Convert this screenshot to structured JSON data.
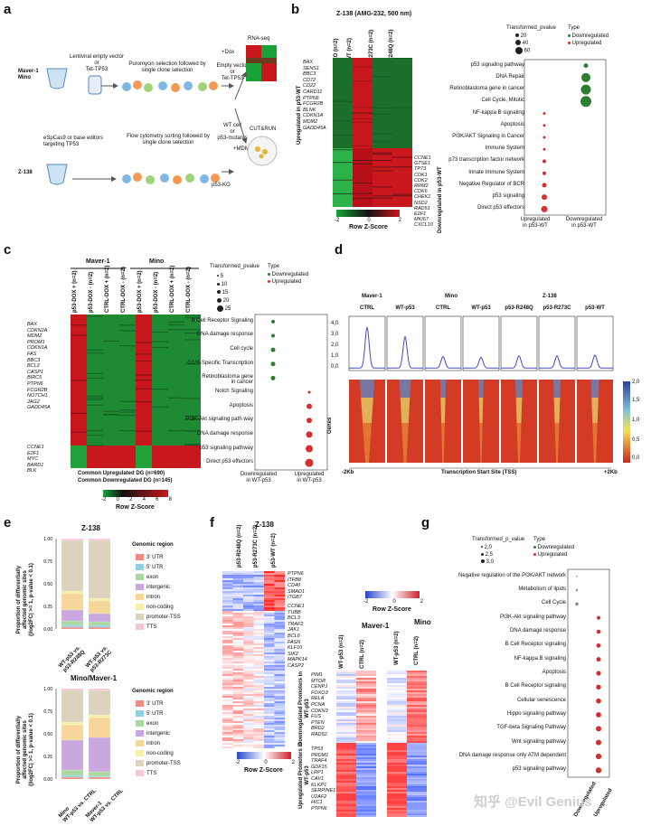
{
  "panels": [
    "a",
    "b",
    "c",
    "d",
    "e",
    "f",
    "g"
  ],
  "colors": {
    "up": "#d32f2f",
    "down": "#2e7d32",
    "heat_green": "#18a33a",
    "heat_red": "#c8181e",
    "blue_heat": "#3b5bd6",
    "tss_red": "#d33b24",
    "tss_yellow": "#f2e25b",
    "curve": "#4a4ab8"
  },
  "a": {
    "rows": [
      {
        "cell": "Maver-1\nMino",
        "source": "Lentiviral empty vector\nor\nTet-TP53",
        "step1": "Puromycin selection followed by\nsingle clone selection",
        "step2": "Empty vector\nor\nTet-TP53",
        "treat": "+Dox"
      },
      {
        "cell": "Z-138",
        "source": "eSpCas9 or base editors\ntargeting TP53",
        "step1": "Flow cytometry sorting followed by\nsingle clone selection",
        "step2": "WT cell\nor\np53-mutants",
        "treat": "+MDM2i"
      }
    ],
    "p53ko": "p53-KO",
    "assays": [
      "RNA-seq",
      "CUT&RUN"
    ]
  },
  "b": {
    "title": "Z-138 (AMG-232, 500 nm)",
    "columns": [
      "p53-KO (n=2)",
      "p53-WT (n=2)",
      "p53-R273C (n=2)",
      "p53-R248Q (n=2)"
    ],
    "side_up": "Upregulated in p53-WT",
    "side_down": "Downregulated in p53-WT",
    "genes_up": [
      "BAX",
      "SENS1",
      "BBC3",
      "CD72",
      "CD22",
      "CARD11",
      "PTPN6",
      "FCGR2B",
      "BLNK",
      "CDKN1A",
      "MDM2",
      "GADD45A"
    ],
    "genes_down": [
      "CCNE1",
      "GTSE1",
      "TP73",
      "CDK1",
      "CDK2",
      "RRM2",
      "CDK6",
      "CHEK1",
      "NSD2",
      "RAD51",
      "E2F1",
      "MKI67",
      "CXCL10"
    ],
    "scale_title": "Row Z-Score",
    "scale_ticks": [
      "-2",
      "0",
      "2"
    ],
    "size_legend_title": "Transformed_pvalue",
    "size_legend": [
      "20",
      "40",
      "60"
    ],
    "type_title": "Type",
    "type_labels": [
      "Downregulated",
      "Upregulated"
    ],
    "pathways": [
      "p53 signaling pathway",
      "DNA Repair",
      "Retinoblastoma gene in cancer",
      "Cell Cycle, Mitotic",
      "NF-kappa B signaling",
      "Apoptosis",
      "PI3K/AKT Signaling in Cancer",
      "Immune System",
      "p73 transcription factor network",
      "Innate Immune System",
      "Negative Regulator of BCR",
      "p53 signaling",
      "Direct p53 effectors"
    ],
    "x_labels": [
      "Upregulated\nin p53-WT",
      "Downregulated\nin p53-WT"
    ]
  },
  "c": {
    "groups": [
      "Maver-1",
      "Mino"
    ],
    "columns": [
      "p53-DOX + (n=2)",
      "p53-DOX - (n=2)",
      "CTRL-DOX + (n=2)",
      "CTRL-DOX - (n=2)",
      "p53-DOX + (n=2)",
      "p53-DOX - (n=2)",
      "CTRL-DOX + (n=2)",
      "CTRL-DOX - (n=2)"
    ],
    "genes_up": [
      "BAX",
      "CDKN2A",
      "MDM2",
      "PROM1",
      "CDKN1A",
      "FAS",
      "BBC3",
      "BCL2",
      "CASP1",
      "BIRC5",
      "PTPN6",
      "FCGR2B",
      "NOTCH1",
      "JAG2",
      "GADD45A"
    ],
    "genes_down": [
      "CCNE1",
      "E2F1",
      "MYC",
      "BARD1",
      "BLK"
    ],
    "footer1": "Common Upregulated DG (n=690)",
    "footer2": "Common Downregulated DG (n=145)",
    "scale_title": "Row Z-Score",
    "scale_ticks": [
      "-2",
      "0",
      "2",
      "4",
      "6",
      "8"
    ],
    "size_legend_title": "Transformed_pvalue",
    "size_legend": [
      "5",
      "10",
      "15",
      "20",
      "25"
    ],
    "type_title": "Type",
    "type_labels": [
      "Downregulated",
      "Upregulated"
    ],
    "pathways": [
      "B Cell Receptor Signaling",
      "DNA damage response",
      "Cell cycle",
      "G1/S-Specific Transcription",
      "Retinoblastoma gene\nin cancer",
      "Notch Signaling",
      "Apoptosis",
      "PI3K-Akt signaling path way",
      "DNA damage response",
      "p53 signaling pathway",
      "Direct p53 effectors"
    ],
    "x_labels": [
      "Downregulated\nin WT-p53",
      "Upregulated\nin WT-p53"
    ]
  },
  "d": {
    "groups": [
      "Maver-1",
      "Mino",
      "Z-138"
    ],
    "conditions": [
      "CTRL",
      "WT-p53",
      "CTRL",
      "WT-p53",
      "p53-R248Q",
      "p53-R273C",
      "p53-WT"
    ],
    "y_ticks": [
      "4,0",
      "3,0",
      "2,0",
      "1,0",
      "0,0"
    ],
    "y_label": "Genes",
    "scale_ticks": [
      "2,0",
      "1,5",
      "1,0",
      "0,5",
      "0,0"
    ],
    "x_left": "-2Kb",
    "x_mid": "Transcription Start Site (TSS)",
    "x_right": "+2Kb"
  },
  "e": {
    "top_title": "Z-138",
    "bottom_title": "Mino/Maver-1",
    "y_label": "Proportion of differentially\naffected genomic sites\n(|log2FC| >= 1, p-value < 0.1)",
    "y_ticks": [
      "1.00",
      "0.75",
      "0.50",
      "0.25",
      "0.00"
    ],
    "top_bars": [
      "WT-p53 vs.\np53-R248Q",
      "WT-p53 vs.\np53-R273C"
    ],
    "bottom_bars": [
      "Mino\nWT-p53 vs. CTRL",
      "Maver-1\nWT-p53 vs. CTRL"
    ],
    "legend_title": "Genomic region",
    "legend": [
      {
        "label": "3' UTR",
        "color": "#f08a84"
      },
      {
        "label": "5' UTR",
        "color": "#8fcfe0"
      },
      {
        "label": "exon",
        "color": "#a9d9a0"
      },
      {
        "label": "intergenic",
        "color": "#c9a8e0"
      },
      {
        "label": "intron",
        "color": "#f7d69a"
      },
      {
        "label": "non-coding",
        "color": "#f5f0a8"
      },
      {
        "label": "promoter-TSS",
        "color": "#ddd2bd"
      },
      {
        "label": "TTS",
        "color": "#f3c8d6"
      }
    ],
    "top_values": [
      [
        0.02,
        0.02,
        0.05,
        0.12,
        0.18,
        0.03,
        0.56,
        0.02
      ],
      [
        0.02,
        0.02,
        0.04,
        0.09,
        0.14,
        0.03,
        0.64,
        0.02
      ]
    ],
    "bottom_values": [
      [
        0.02,
        0.02,
        0.06,
        0.33,
        0.17,
        0.03,
        0.35,
        0.02
      ],
      [
        0.02,
        0.01,
        0.05,
        0.38,
        0.22,
        0.03,
        0.27,
        0.02
      ]
    ]
  },
  "f": {
    "title": "Z-138",
    "columns": [
      "p53-R248Q (n=2)",
      "p53-R273C (n=2)",
      "p53-WT (n=2)"
    ],
    "genes_top": [
      "PTPN6",
      "ITFB8",
      "CD40",
      "SMAD1",
      "ITGB7"
    ],
    "genes_mid": [
      "CCNE1",
      "TUBB",
      "BCL3",
      "TRAF2",
      "JAK1",
      "BCL6",
      "FASN",
      "KLF10",
      "SIK2",
      "MAPK14",
      "CASP2"
    ],
    "scale_title": "Row Z-Score",
    "scale_ticks": [
      "-2",
      "0",
      "2"
    ],
    "groups": [
      "Maver-1",
      "Mino"
    ],
    "mav_columns": [
      "WT-p53 (n=2)",
      "CTRL (n=2)",
      "WT-p53 (n=2)",
      "CTRL (n=2)"
    ],
    "side_down": "Downregulated Promoters in WT-p53",
    "side_up": "Upregulated Promoters in WT-p53",
    "genes_down": [
      "PIM1",
      "MTOR",
      "CENPJ",
      "FOXO3",
      "RELA",
      "PCNA",
      "CDKN3",
      "FUS",
      "PTEN",
      "BRD2",
      "RAD52"
    ],
    "genes_up": [
      "TP53",
      "PRDM1",
      "TRAF4",
      "GDF15",
      "LRP1",
      "CAV1",
      "KLKP1",
      "SERPINE1",
      "U2AF2",
      "HIC1",
      "PTPN6"
    ]
  },
  "g": {
    "size_legend_title": "Transformed_p_value",
    "size_legend": [
      "2,0",
      "2,5",
      "3,0"
    ],
    "type_title": "Type",
    "type_labels": [
      "Downregulated",
      "Upregulated"
    ],
    "pathways": [
      "Negative regulation of the PI3K/AKT network",
      "Metabolism of lipids",
      "Cell Cycle",
      "PI3K-Akt signaling pathway",
      "DNA damage response",
      "B Cell Receptor signaling",
      "NF-kappa B signaling",
      "Apoptosis",
      "B Cell Receptor signaling",
      "Cellular senescence",
      "Hippo signaling pathway",
      "TGF-beta Signaling Pathway",
      "Wnt signaling pathway",
      "DNA damage response only ATM dependent",
      "p53 signaling pathway"
    ],
    "x_labels": [
      "Downregulated",
      "Upregulated"
    ],
    "watermark": "知乎 @Evil Genius"
  }
}
